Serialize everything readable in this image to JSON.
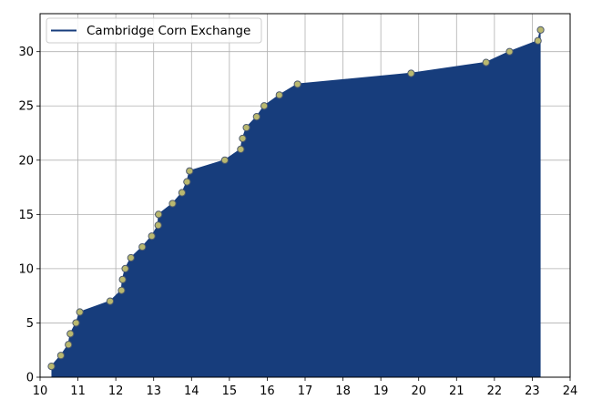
{
  "chart_data": {
    "type": "area",
    "title": "",
    "xlabel": "",
    "ylabel": "",
    "xlim": [
      10,
      24
    ],
    "ylim": [
      0,
      33.5
    ],
    "xticks": [
      "10",
      "11",
      "12",
      "13",
      "14",
      "15",
      "16",
      "17",
      "18",
      "19",
      "20",
      "21",
      "22",
      "23",
      "24"
    ],
    "yticks": [
      "0",
      "5",
      "10",
      "15",
      "20",
      "25",
      "30"
    ],
    "grid": true,
    "legend": {
      "placement": "top-left",
      "entries": [
        "Cambridge Corn Exchange"
      ]
    },
    "colors": {
      "fill": "#173d7c",
      "line": "#173d7c",
      "marker_fill": "#b9b86f",
      "marker_edge": "#4f5b6e",
      "grid": "#b0b0b0"
    },
    "series": [
      {
        "name": "Cambridge Corn Exchange",
        "x": [
          10.3,
          10.55,
          10.75,
          10.8,
          10.95,
          11.05,
          11.85,
          12.15,
          12.18,
          12.25,
          12.4,
          12.7,
          12.95,
          13.12,
          13.13,
          13.5,
          13.75,
          13.88,
          13.95,
          14.88,
          15.3,
          15.35,
          15.45,
          15.72,
          15.92,
          16.32,
          16.8,
          19.8,
          21.78,
          22.4,
          23.15,
          23.22
        ],
        "y": [
          1,
          2,
          3,
          4,
          5,
          6,
          7,
          8,
          9,
          10,
          11,
          12,
          13,
          14,
          15,
          16,
          17,
          18,
          19,
          20,
          21,
          22,
          23,
          24,
          25,
          26,
          27,
          28,
          29,
          30,
          31,
          32
        ]
      }
    ]
  }
}
